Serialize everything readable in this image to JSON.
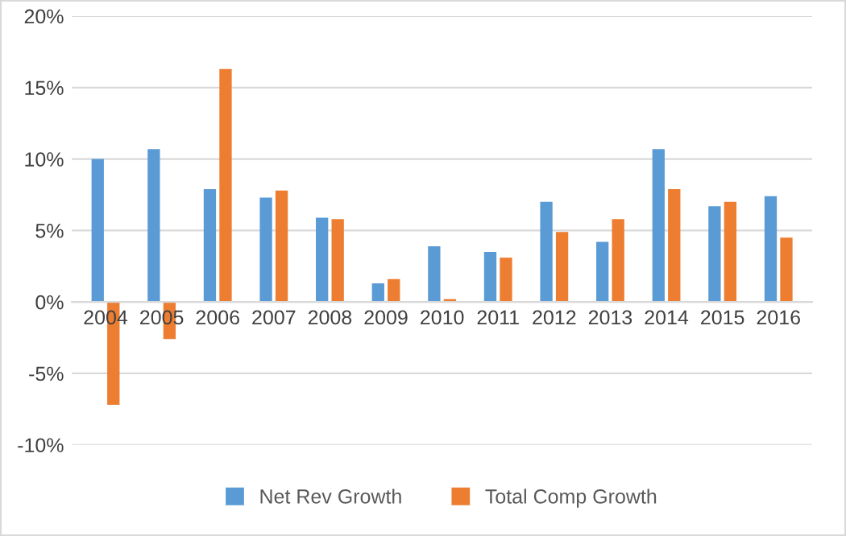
{
  "chart_data": {
    "type": "bar",
    "categories": [
      "2004",
      "2005",
      "2006",
      "2007",
      "2008",
      "2009",
      "2010",
      "2011",
      "2012",
      "2013",
      "2014",
      "2015",
      "2016"
    ],
    "series": [
      {
        "name": "Net Rev Growth",
        "color": "#5b9bd5",
        "values": [
          10.0,
          10.7,
          7.9,
          7.3,
          5.9,
          1.3,
          3.9,
          3.5,
          7.0,
          4.2,
          10.7,
          6.7,
          7.4
        ]
      },
      {
        "name": "Total Comp Growth",
        "color": "#ed7d31",
        "values": [
          -7.2,
          -2.6,
          16.3,
          7.8,
          5.8,
          1.6,
          0.2,
          3.1,
          4.9,
          5.8,
          7.9,
          7.0,
          4.5
        ]
      }
    ],
    "ylim": [
      -10,
      20
    ],
    "yticks": [
      {
        "value": -10,
        "label": "-10%"
      },
      {
        "value": -5,
        "label": "-5%"
      },
      {
        "value": 0,
        "label": "0%"
      },
      {
        "value": 5,
        "label": "5%"
      },
      {
        "value": 10,
        "label": "10%"
      },
      {
        "value": 15,
        "label": "15%"
      },
      {
        "value": 20,
        "label": "20%"
      }
    ],
    "grid": "y",
    "legend": "bottom"
  }
}
